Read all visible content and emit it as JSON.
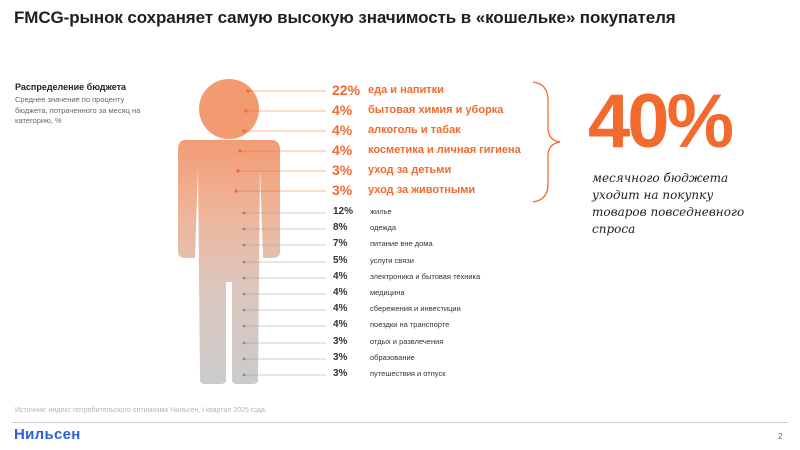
{
  "title": "FMCG-рынок сохраняет самую высокую значимость в «кошельке» покупателя",
  "side": {
    "heading": "Распределение бюджета",
    "subtitle": "Среднее значение по проценту бюджета, потраченного за месяц на категорию, %"
  },
  "highlighted": [
    {
      "pct": "22%",
      "label": "еда и напитки"
    },
    {
      "pct": "4%",
      "label": "бытовая химия и уборка"
    },
    {
      "pct": "4%",
      "label": "алкоголь и табак"
    },
    {
      "pct": "4%",
      "label": "косметика и личная гигиена"
    },
    {
      "pct": "3%",
      "label": "уход за детьми"
    },
    {
      "pct": "3%",
      "label": "уход за животными"
    }
  ],
  "others": [
    {
      "pct": "12%",
      "label": "жилье"
    },
    {
      "pct": "8%",
      "label": "одежда"
    },
    {
      "pct": "7%",
      "label": "питание вне дома"
    },
    {
      "pct": "5%",
      "label": "услуги связи"
    },
    {
      "pct": "4%",
      "label": "электроника и бытовая техника"
    },
    {
      "pct": "4%",
      "label": "медицина"
    },
    {
      "pct": "4%",
      "label": "сбережения и инвестиции"
    },
    {
      "pct": "4%",
      "label": "поездки на транспорте"
    },
    {
      "pct": "3%",
      "label": "отдых и развлечения"
    },
    {
      "pct": "3%",
      "label": "образование"
    },
    {
      "pct": "3%",
      "label": "путешествия и отпуск"
    }
  ],
  "summary": {
    "big_number": "40%",
    "description": "месячного бюджета уходит на покупку товаров повседневного спроса"
  },
  "source": "Источник: индекс потребительского оптимизма Нильсен, I квартал 2025 года.",
  "logo": "Нильсен",
  "page_number": "2",
  "colors": {
    "accent": "#f26a2e",
    "figure_top": "#f2a07a",
    "figure_bottom": "#c8c8c8",
    "logo": "#2d5fd6"
  }
}
